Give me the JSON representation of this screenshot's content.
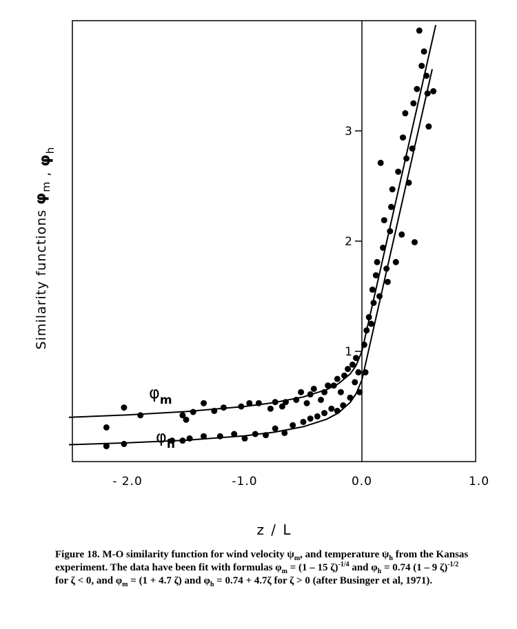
{
  "chart_data": {
    "type": "scatter",
    "xlabel": "z / L",
    "ylabel": [
      "Similarity functions ",
      {
        "symbol": "φ",
        "sub": "m"
      },
      " , ",
      {
        "symbol": "φ",
        "sub": "h"
      }
    ],
    "xlim": [
      -2.5,
      1.0
    ],
    "ylim": [
      0,
      4
    ],
    "xticks": [
      {
        "value": -2,
        "label": "- 2.0"
      },
      {
        "value": -1,
        "label": "-1.0"
      },
      {
        "value": 0,
        "label": "0.0"
      },
      {
        "value": 1,
        "label": "1.0"
      }
    ],
    "yticks": [
      1,
      2,
      3
    ],
    "grid": false,
    "color": "#000000",
    "points": {
      "x": [
        -2.18,
        -2.03,
        -2.18,
        -2.03,
        -1.89,
        -1.53,
        -1.5,
        -1.53,
        -1.62,
        -1.44,
        -1.35,
        -1.35,
        -1.47,
        -1.26,
        -1.18,
        -1.21,
        -1.09,
        -1.03,
        -0.96,
        -0.88,
        -1.0,
        -0.91,
        -0.82,
        -0.78,
        -0.74,
        -0.68,
        -0.65,
        -0.74,
        -0.66,
        -0.59,
        -0.56,
        -0.52,
        -0.47,
        -0.44,
        -0.41,
        -0.5,
        -0.44,
        -0.38,
        -0.35,
        -0.32,
        -0.29,
        -0.32,
        -0.26,
        -0.24,
        -0.21,
        -0.18,
        -0.21,
        -0.16,
        -0.15,
        -0.12,
        -0.1,
        -0.08,
        -0.06,
        -0.05,
        -0.03,
        -0.02,
        0.02,
        0.03,
        0.04,
        0.06,
        0.08,
        0.09,
        0.1,
        0.12,
        0.13,
        0.15,
        0.16,
        0.18,
        0.19,
        0.21,
        0.22,
        0.24,
        0.25,
        0.26,
        0.29,
        0.31,
        0.34,
        0.35,
        0.37,
        0.38,
        0.4,
        0.43,
        0.44,
        0.45,
        0.47,
        0.49,
        0.51,
        0.53,
        0.55,
        0.57,
        0.61,
        0.56
      ],
      "values": [
        0.31,
        0.49,
        0.14,
        0.16,
        0.42,
        0.42,
        0.38,
        0.19,
        0.19,
        0.45,
        0.53,
        0.23,
        0.21,
        0.46,
        0.49,
        0.23,
        0.25,
        0.5,
        0.53,
        0.53,
        0.21,
        0.25,
        0.24,
        0.48,
        0.54,
        0.5,
        0.54,
        0.3,
        0.26,
        0.33,
        0.56,
        0.63,
        0.53,
        0.61,
        0.66,
        0.36,
        0.39,
        0.41,
        0.56,
        0.63,
        0.69,
        0.44,
        0.48,
        0.69,
        0.75,
        0.63,
        0.46,
        0.51,
        0.78,
        0.84,
        0.58,
        0.88,
        0.72,
        0.94,
        0.81,
        0.63,
        1.06,
        0.81,
        1.19,
        1.31,
        1.25,
        1.56,
        1.44,
        1.69,
        1.81,
        1.5,
        2.71,
        1.94,
        2.19,
        1.75,
        1.63,
        2.09,
        2.31,
        2.47,
        1.81,
        2.63,
        2.06,
        2.94,
        3.16,
        2.75,
        2.53,
        2.84,
        3.25,
        1.99,
        3.38,
        3.91,
        3.59,
        3.72,
        3.5,
        3.04,
        3.36,
        3.34
      ]
    },
    "fits": [
      {
        "x": [
          -2.5,
          -2,
          -1.5,
          -1,
          -0.75,
          -0.5,
          -0.3,
          -0.2,
          -0.1,
          -0.05,
          0,
          0.2,
          0.4,
          0.63
        ],
        "values": [
          0.401,
          0.424,
          0.454,
          0.5,
          0.535,
          0.586,
          0.653,
          0.707,
          0.795,
          0.87,
          1,
          1.94,
          2.88,
          3.96
        ]
      },
      {
        "x": [
          -2.5,
          -2,
          -1.5,
          -1,
          -0.75,
          -0.5,
          -0.3,
          -0.2,
          -0.1,
          -0.05,
          0,
          0.2,
          0.4,
          0.6
        ],
        "values": [
          0.153,
          0.17,
          0.194,
          0.234,
          0.266,
          0.316,
          0.385,
          0.442,
          0.537,
          0.615,
          0.74,
          1.68,
          2.62,
          3.56
        ]
      }
    ],
    "annotations": [
      {
        "symbol": "φ",
        "sub": "m"
      },
      {
        "symbol": "φ",
        "sub": "h"
      }
    ]
  },
  "caption": [
    "Figure 18.  M-O similarity function for wind velocity ψ",
    {
      "sub": "m"
    },
    ", and temperature ψ",
    {
      "sub": "h"
    },
    " from the Kansas experiment. The data have been fit with formulas φ",
    {
      "sub": "m"
    },
    " = (1 – 15 ζ)",
    {
      "sup": "-1/4"
    },
    " and φ",
    {
      "sub": "h"
    },
    " = 0.74 (1 – 9 ζ)",
    {
      "sup": "-1/2"
    },
    " for ζ < 0, and φ",
    {
      "sub": "m"
    },
    " = (1 + 4.7 ζ) and φ",
    {
      "sub": "h"
    },
    " = 0.74 + 4.7ζ for ζ > 0 (after Businger et al, 1971)."
  ]
}
